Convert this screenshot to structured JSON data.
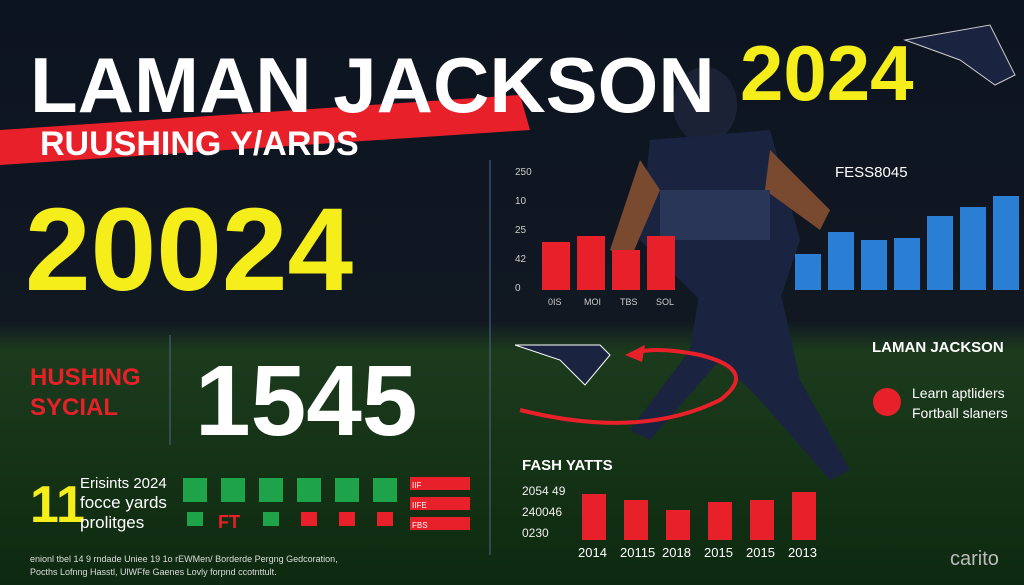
{
  "header": {
    "title": "LAMAN JACKSON",
    "banner": "RUUSHING Y/ARDS",
    "year": "2024",
    "big_year": "20024"
  },
  "stat": {
    "label_lines": [
      "HUSHING",
      "SYCIAL"
    ],
    "value": "1545"
  },
  "bottom_left": {
    "number": "11",
    "lines": [
      "Erisints 2024",
      "focce yards",
      "prolitges"
    ],
    "icon_text": "FT",
    "tags": [
      "IIF",
      "IIFE",
      "FBS"
    ]
  },
  "top_chart": {
    "legend": "FESS8045",
    "y_labels": [
      "250",
      "10",
      "25",
      "42",
      "0"
    ],
    "x_labels": [
      "0IS",
      "MOI",
      "TBS",
      "SOL"
    ],
    "red_values": [
      48,
      54,
      40,
      54
    ],
    "blue_values": [
      36,
      58,
      50,
      52,
      74,
      83,
      94
    ]
  },
  "right_note": {
    "title": "LAMAN JACKSON",
    "lines": [
      "Learn aptliders",
      "Fortball slaners"
    ]
  },
  "bottom_chart": {
    "title": "FASH YATTS",
    "y_labels": [
      "2054 49",
      "240046",
      "0230"
    ],
    "x_labels": [
      "2014",
      "20115",
      "2018",
      "2015",
      "2015",
      "2013"
    ],
    "values": [
      46,
      40,
      30,
      38,
      40,
      48
    ]
  },
  "footer": [
    "enionl tbel 14 9 rndade Uniee 19 1o rEWMen/ Borderde Pergng Gedcoration,",
    "Pocths Lofnng Hasstl, UlWFfe Gaenes Lovly forpnd ccotnttult."
  ],
  "watermark": "carito"
}
